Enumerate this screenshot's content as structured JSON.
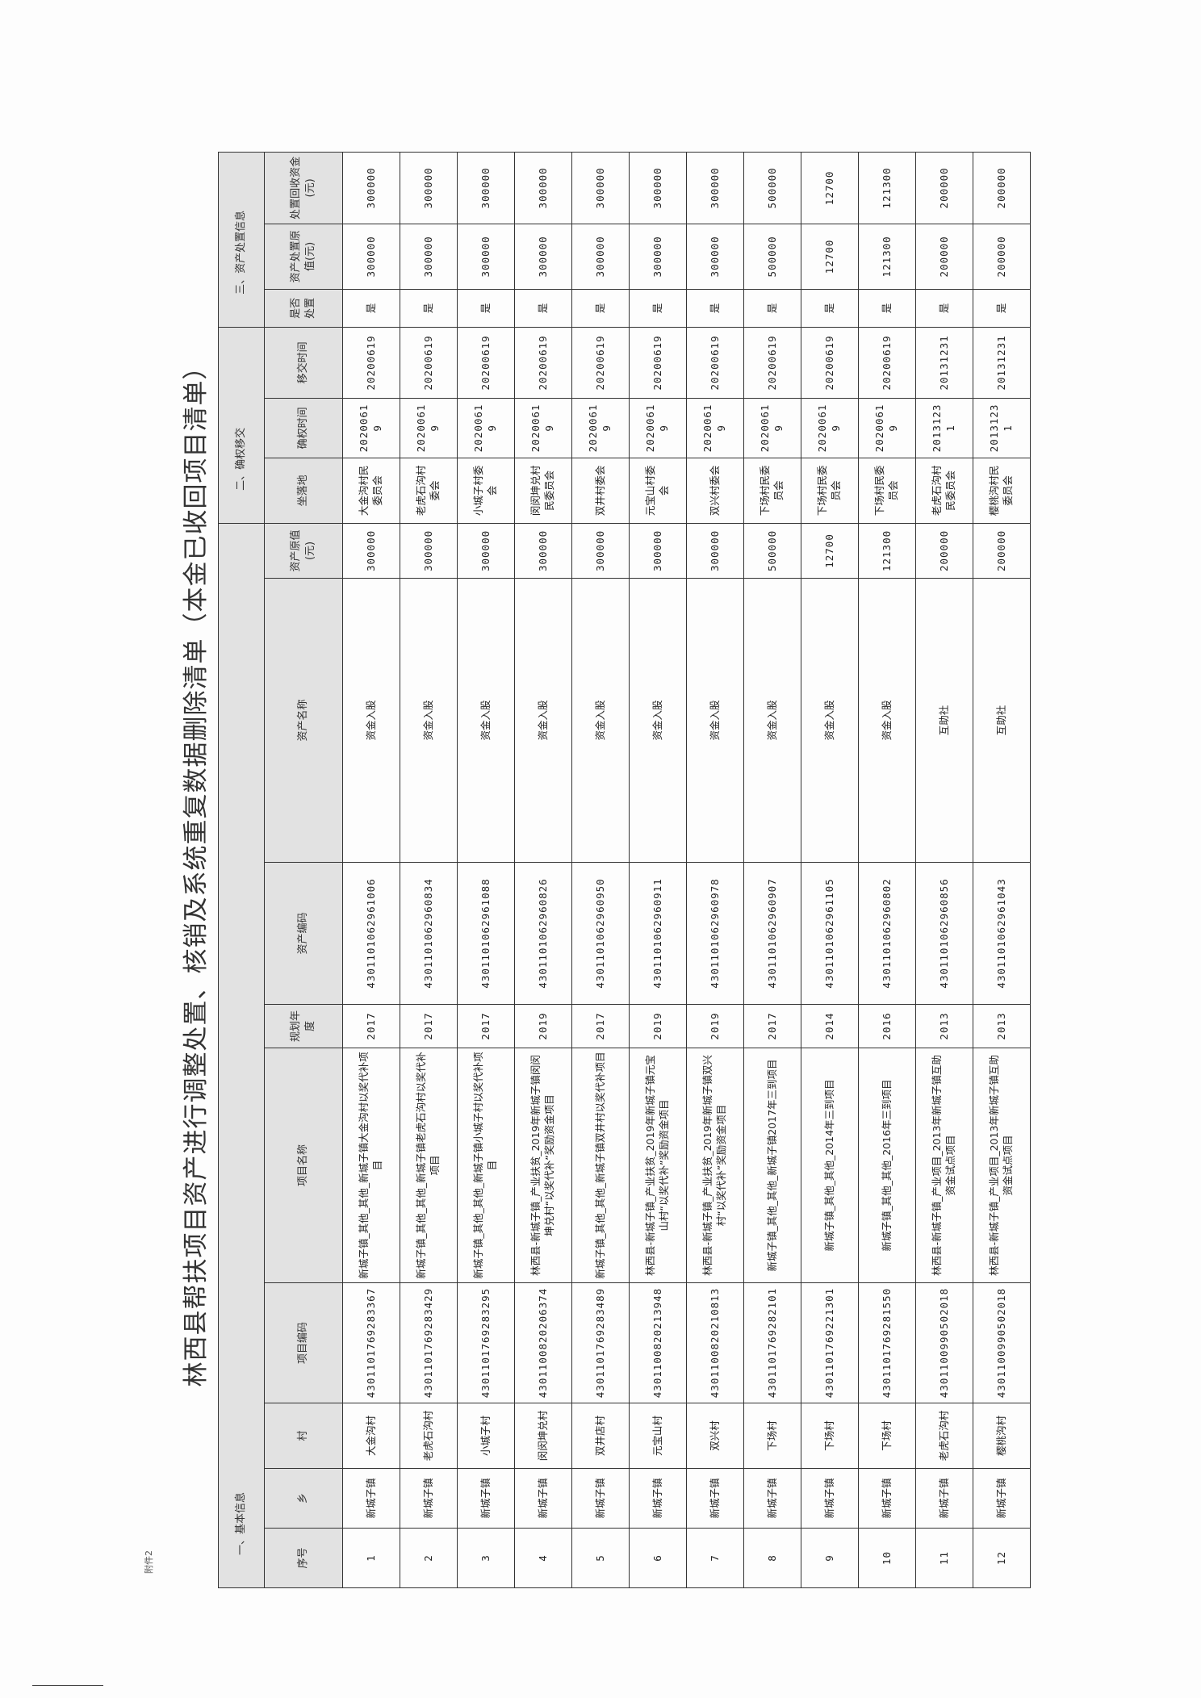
{
  "title": "林西县帮扶项目资产进行调整处置、核销及系统重复数据删除清单（本金已收回项目清单）",
  "attachment_label": "附件2",
  "groups": [
    "一、基本信息",
    "二、确权移交",
    "三、资产处置信息"
  ],
  "columns": [
    "序号",
    "乡",
    "村",
    "项目编码",
    "项目名称",
    "规划年度",
    "资产编码",
    "资产名称",
    "资产原值(元)",
    "坐落地",
    "确权时间",
    "移交时间",
    "是否处置",
    "资产处置原值(元)",
    "处置回收资金(元)"
  ],
  "rows": [
    [
      "1",
      "新城子镇",
      "大金沟村",
      "4301101769283367",
      "新城子镇_其他_其他_新城子镇大金沟村以奖代补项目",
      "2017",
      "4301101062961006",
      "资金入股",
      "300000",
      "大金沟村民委员会",
      "20200619",
      "20200619",
      "是",
      "300000",
      "300000"
    ],
    [
      "2",
      "新城子镇",
      "老虎石沟村",
      "4301101769283429",
      "新城子镇_其他_其他_新城子镇老虎石沟村以奖代补项目",
      "2017",
      "4301101062960834",
      "资金入股",
      "300000",
      "老虎石沟村委会",
      "20200619",
      "20200619",
      "是",
      "300000",
      "300000"
    ],
    [
      "3",
      "新城子镇",
      "小城子村",
      "4301101769283295",
      "新城子镇_其他_其他_新城子镇小城子村以奖代补项目",
      "2017",
      "4301101062961088",
      "资金入股",
      "300000",
      "小城子村委会",
      "20200619",
      "20200619",
      "是",
      "300000",
      "300000"
    ],
    [
      "4",
      "新城子镇",
      "闵闵坤兑村",
      "4301100820206374",
      "林西县-新城子镇_产业扶贫_2019年新城子镇闵闵坤兑村“以奖代补”奖励资金项目",
      "2019",
      "4301101062960826",
      "资金入股",
      "300000",
      "闵闵坤兑村民委员会",
      "20200619",
      "20200619",
      "是",
      "300000",
      "300000"
    ],
    [
      "5",
      "新城子镇",
      "双井店村",
      "4301101769283489",
      "新城子镇_其他_其他_新城子镇双井村以奖代补项目",
      "2017",
      "4301101062960950",
      "资金入股",
      "300000",
      "双井村委会",
      "20200619",
      "20200619",
      "是",
      "300000",
      "300000"
    ],
    [
      "6",
      "新城子镇",
      "元宝山村",
      "4301100820213948",
      "林西县-新城子镇_产业扶贫_2019年新城子镇元宝山村“以奖代补”奖励资金项目",
      "2019",
      "4301101062960911",
      "资金入股",
      "300000",
      "元宝山村委会",
      "20200619",
      "20200619",
      "是",
      "300000",
      "300000"
    ],
    [
      "7",
      "新城子镇",
      "双兴村",
      "4301100820210813",
      "林西县-新城子镇_产业扶贫_2019年新城子镇双兴村“以奖代补”奖励资金项目",
      "2019",
      "4301101062960978",
      "资金入股",
      "300000",
      "双兴村委会",
      "20200619",
      "20200619",
      "是",
      "300000",
      "300000"
    ],
    [
      "8",
      "新城子镇",
      "下场村",
      "4301101769282101",
      "新城子镇_其他_其他_新城子镇2017年三到项目",
      "2017",
      "4301101062960907",
      "资金入股",
      "500000",
      "下场村民委员会",
      "20200619",
      "20200619",
      "是",
      "500000",
      "500000"
    ],
    [
      "9",
      "新城子镇",
      "下场村",
      "4301101769221301",
      "新城子镇_其他_其他_2014年三到项目",
      "2014",
      "4301101062961105",
      "资金入股",
      "12700",
      "下场村民委员会",
      "20200619",
      "20200619",
      "是",
      "12700",
      "12700"
    ],
    [
      "10",
      "新城子镇",
      "下场村",
      "4301101769281550",
      "新城子镇_其他_其他_2016年三到项目",
      "2016",
      "4301101062960802",
      "资金入股",
      "121300",
      "下场村民委员会",
      "20200619",
      "20200619",
      "是",
      "121300",
      "121300"
    ],
    [
      "11",
      "新城子镇",
      "老虎石沟村",
      "4301100990502018",
      "林西县-新城子镇_产业项目_2013年新城子镇互助资金试点项目",
      "2013",
      "4301101062960856",
      "互助社",
      "200000",
      "老虎石沟村民委员会",
      "20131231",
      "20131231",
      "是",
      "200000",
      "200000"
    ],
    [
      "12",
      "新城子镇",
      "樱桃沟村",
      "4301100990502018",
      "林西县-新城子镇_产业项目_2013年新城子镇互助资金试点项目",
      "2013",
      "4301101062961043",
      "互助社",
      "200000",
      "樱桃沟村民委员会",
      "20131231",
      "20131231",
      "是",
      "200000",
      "200000"
    ]
  ]
}
